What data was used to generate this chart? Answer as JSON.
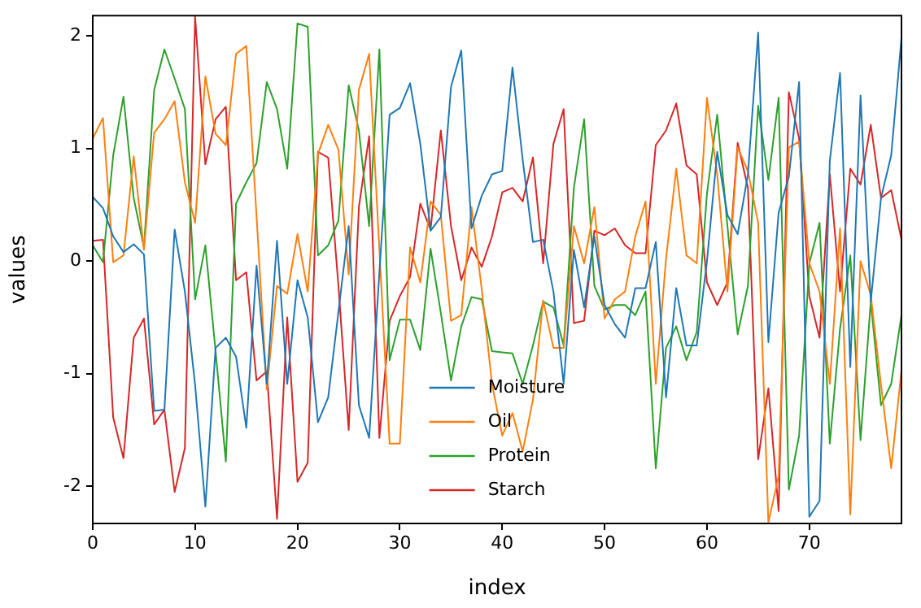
{
  "chart_data": {
    "type": "line",
    "xlabel": "index",
    "ylabel": "values",
    "x": [
      0,
      1,
      2,
      3,
      4,
      5,
      6,
      7,
      8,
      9,
      10,
      11,
      12,
      13,
      14,
      15,
      16,
      17,
      18,
      19,
      20,
      21,
      22,
      23,
      24,
      25,
      26,
      27,
      28,
      29,
      30,
      31,
      32,
      33,
      34,
      35,
      36,
      37,
      38,
      39,
      40,
      41,
      42,
      43,
      44,
      45,
      46,
      47,
      48,
      49,
      50,
      51,
      52,
      53,
      54,
      55,
      56,
      57,
      58,
      59,
      60,
      61,
      62,
      63,
      64,
      65,
      66,
      67,
      68,
      69,
      70,
      71,
      72,
      73,
      74,
      75,
      76,
      77,
      78,
      79
    ],
    "series": [
      {
        "name": "Moisture",
        "color": "#1f77b4",
        "values": [
          0.57,
          0.47,
          0.22,
          0.08,
          0.15,
          0.06,
          -1.33,
          -1.32,
          0.28,
          -0.27,
          -1.1,
          -2.18,
          -0.77,
          -0.68,
          -0.85,
          -1.48,
          -0.04,
          -1.09,
          0.18,
          -1.09,
          -0.17,
          -0.5,
          -1.43,
          -1.21,
          -0.45,
          0.31,
          -1.28,
          -1.57,
          -0.1,
          1.3,
          1.36,
          1.58,
          1.04,
          0.27,
          0.39,
          1.55,
          1.87,
          0.29,
          0.58,
          0.77,
          0.8,
          1.72,
          0.9,
          0.17,
          0.19,
          -0.27,
          -1.09,
          0.1,
          -0.41,
          0.22,
          -0.39,
          -0.56,
          -0.68,
          -0.24,
          -0.24,
          0.17,
          -1.21,
          -0.24,
          -0.75,
          -0.75,
          0.0,
          0.97,
          0.41,
          0.24,
          0.77,
          2.03,
          -0.72,
          0.43,
          0.75,
          1.59,
          -2.27,
          -2.13,
          0.89,
          1.67,
          -0.94,
          1.47,
          -0.36,
          0.56,
          0.94,
          1.98
        ]
      },
      {
        "name": "Oil",
        "color": "#ff7f0e",
        "values": [
          1.09,
          1.27,
          -0.01,
          0.05,
          0.93,
          0.1,
          1.14,
          1.26,
          1.42,
          0.7,
          0.34,
          1.64,
          1.13,
          1.03,
          1.84,
          1.91,
          0.4,
          -1.14,
          -0.22,
          -0.29,
          0.24,
          -0.27,
          0.95,
          1.21,
          0.99,
          -0.12,
          1.52,
          1.84,
          0.1,
          -1.62,
          -1.62,
          0.12,
          -0.19,
          0.53,
          0.41,
          -0.53,
          -0.48,
          0.48,
          -0.25,
          -1.09,
          -1.55,
          -1.35,
          -1.69,
          -1.23,
          -0.35,
          -0.77,
          -0.77,
          0.31,
          -0.02,
          0.48,
          -0.51,
          -0.34,
          -0.27,
          0.22,
          0.53,
          -1.09,
          0.02,
          0.82,
          0.05,
          -0.02,
          1.45,
          0.77,
          -0.27,
          1.01,
          0.8,
          0.34,
          -2.32,
          -1.91,
          1.01,
          1.06,
          -0.02,
          -0.27,
          -1.09,
          0.29,
          -2.25,
          0.0,
          -0.3,
          -1.1,
          -1.84,
          -0.97
        ]
      },
      {
        "name": "Protein",
        "color": "#2ca02c",
        "values": [
          0.14,
          -0.01,
          0.94,
          1.46,
          0.56,
          0.12,
          1.52,
          1.88,
          1.62,
          1.35,
          -0.34,
          0.14,
          -0.8,
          -1.78,
          0.51,
          0.7,
          0.87,
          1.59,
          1.35,
          0.82,
          2.11,
          2.08,
          0.05,
          0.14,
          0.36,
          1.56,
          1.16,
          0.31,
          1.88,
          -0.88,
          -0.52,
          -0.52,
          -0.79,
          0.11,
          -0.46,
          -1.06,
          -0.58,
          -0.32,
          -0.34,
          -0.8,
          -0.81,
          -0.82,
          -1.09,
          -0.75,
          -0.36,
          -0.41,
          -0.75,
          0.65,
          1.26,
          -0.22,
          -0.43,
          -0.39,
          -0.39,
          -0.48,
          -0.27,
          -1.84,
          -0.77,
          -0.58,
          -0.88,
          -0.63,
          0.6,
          1.3,
          0.31,
          -0.65,
          -0.22,
          1.38,
          0.72,
          1.45,
          -2.03,
          -1.55,
          -0.02,
          0.34,
          -1.62,
          -0.6,
          0.05,
          -1.59,
          -0.36,
          -1.28,
          -1.09,
          -0.48
        ]
      },
      {
        "name": "Starch",
        "color": "#d62728",
        "values": [
          0.18,
          0.19,
          -1.39,
          -1.75,
          -0.68,
          -0.51,
          -1.45,
          -1.32,
          -2.05,
          -1.66,
          2.17,
          0.86,
          1.26,
          1.37,
          -0.17,
          -0.1,
          -1.06,
          -0.98,
          -2.29,
          -0.5,
          -1.96,
          -1.79,
          0.97,
          0.92,
          -0.22,
          -1.5,
          0.48,
          1.11,
          -1.57,
          -0.53,
          -0.31,
          -0.14,
          0.51,
          0.28,
          1.16,
          0.31,
          -0.17,
          0.12,
          -0.05,
          0.22,
          0.61,
          0.65,
          0.53,
          0.92,
          -0.02,
          1.04,
          1.35,
          -0.55,
          -0.53,
          0.27,
          0.23,
          0.29,
          0.14,
          0.07,
          0.07,
          1.03,
          1.16,
          1.4,
          0.85,
          0.77,
          -0.19,
          -0.39,
          -0.19,
          1.05,
          0.65,
          -1.76,
          -1.13,
          -2.22,
          1.5,
          1.09,
          -0.31,
          -0.68,
          0.77,
          -0.27,
          0.82,
          0.68,
          1.21,
          0.56,
          0.63,
          0.19
        ]
      }
    ],
    "xlim": [
      0,
      79
    ],
    "xticks": [
      0,
      10,
      20,
      30,
      40,
      50,
      60,
      70
    ],
    "ylim": [
      -2.33,
      2.18
    ],
    "yticks": [
      -2,
      -1,
      0,
      1,
      2
    ],
    "grid": false,
    "legend": "bottom",
    "marker": "none",
    "line_style": "solid"
  }
}
